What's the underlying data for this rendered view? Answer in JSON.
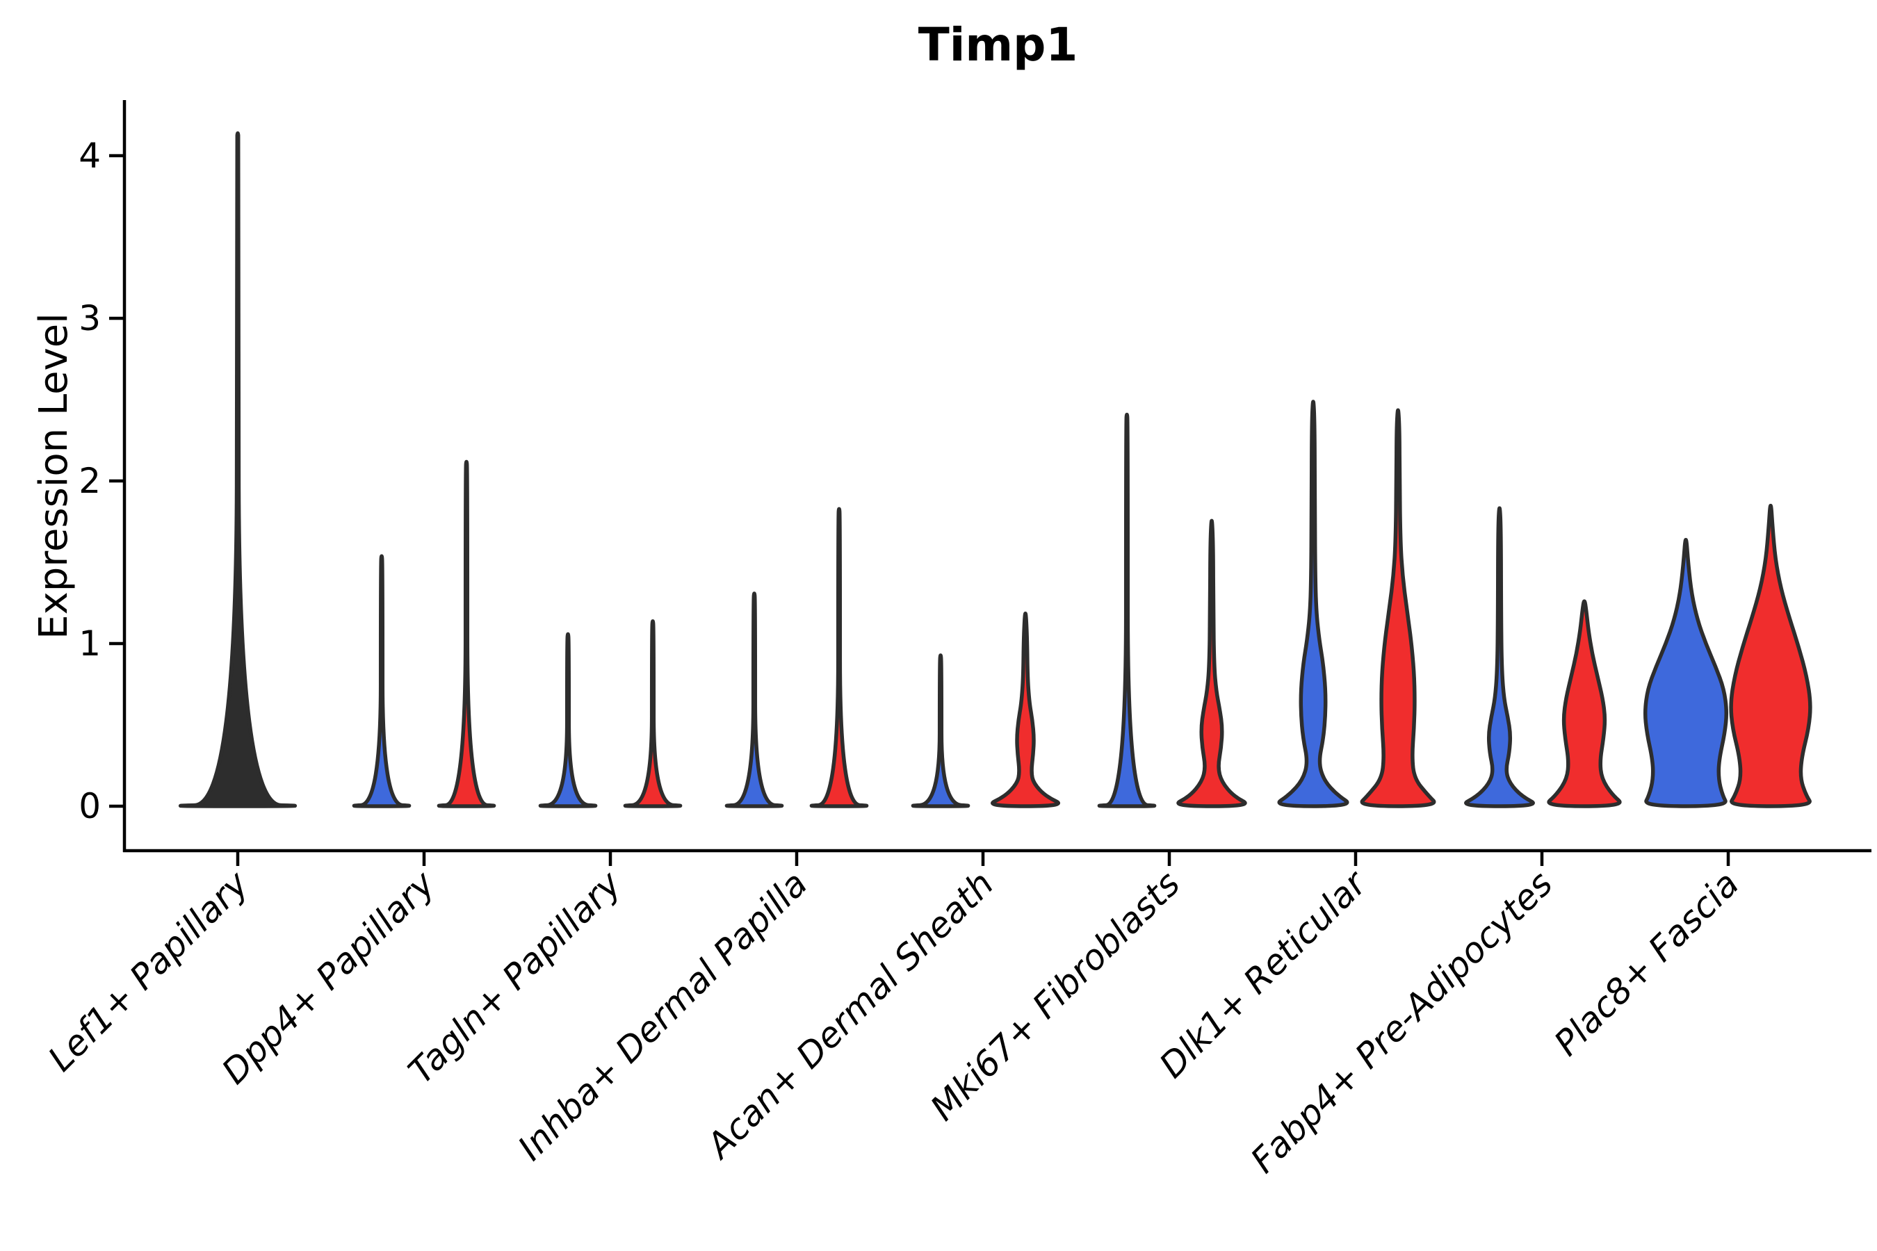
{
  "figure": {
    "title": "Timp1",
    "ylabel": "Expression Level"
  },
  "colors": {
    "blue_fill": "#3E69DC",
    "red_fill": "#F02D2D",
    "outline": "#2D2D2D",
    "axis": "#000000",
    "background": "#FFFFFF"
  },
  "chart_data": {
    "type": "violin",
    "title": "Timp1",
    "ylabel": "Expression Level",
    "xlabel": "",
    "ylim": [
      0,
      4.35
    ],
    "yticks": [
      0,
      1,
      2,
      3,
      4
    ],
    "ytick_labels": [
      "0",
      "1",
      "2",
      "3",
      "4"
    ],
    "grid": false,
    "legend_position": "none",
    "categories": [
      "Lef1+ Papillary",
      "Dpp4+ Papillary",
      "Tagln+ Papillary",
      "Inhba+ Dermal Papilla",
      "Acan+ Dermal Sheath",
      "Mki67+ Fibroblasts",
      "Dlk1+ Reticular",
      "Fabp4+ Pre-Adipocytes",
      "Plac8+ Fascia"
    ],
    "series": [
      {
        "name": "left-violin-blue",
        "color": "#3E69DC",
        "max_expression": [
          null,
          1.55,
          1.07,
          1.32,
          0.94,
          2.42,
          2.53,
          1.87,
          1.69
        ]
      },
      {
        "name": "right-violin-red",
        "color": "#F02D2D",
        "max_expression": [
          null,
          2.13,
          1.15,
          1.84,
          1.23,
          1.8,
          2.47,
          1.28,
          1.89
        ]
      }
    ],
    "single_violin": {
      "category": "Lef1+ Papillary",
      "max_expression": 4.15,
      "note": "single flat centered violin, full category width"
    },
    "violins": [
      {
        "category": 0,
        "group": "single",
        "fill": "outline",
        "dx": 0,
        "halfwidth": 123,
        "max": 4.15,
        "shape": "spike"
      },
      {
        "category": 1,
        "group": "blue",
        "fill": "blue",
        "dx": -61,
        "halfwidth": 59,
        "max": 1.55,
        "shape": "spike"
      },
      {
        "category": 1,
        "group": "red",
        "fill": "red",
        "dx": 61,
        "halfwidth": 59,
        "max": 2.13,
        "shape": "spike"
      },
      {
        "category": 2,
        "group": "blue",
        "fill": "blue",
        "dx": -61,
        "halfwidth": 59,
        "max": 1.07,
        "shape": "spike"
      },
      {
        "category": 2,
        "group": "red",
        "fill": "red",
        "dx": 61,
        "halfwidth": 59,
        "max": 1.15,
        "shape": "spike"
      },
      {
        "category": 3,
        "group": "blue",
        "fill": "blue",
        "dx": -61,
        "halfwidth": 59,
        "max": 1.32,
        "shape": "spike"
      },
      {
        "category": 3,
        "group": "red",
        "fill": "red",
        "dx": 61,
        "halfwidth": 59,
        "max": 1.84,
        "shape": "spike"
      },
      {
        "category": 4,
        "group": "blue",
        "fill": "blue",
        "dx": -61,
        "halfwidth": 59,
        "max": 0.94,
        "shape": "spike"
      },
      {
        "category": 4,
        "group": "red",
        "fill": "red",
        "dx": 61,
        "halfwidth": 59,
        "max": 1.23,
        "shape": "profile",
        "profile": [
          [
            0,
            1
          ],
          [
            0.06,
            0.5
          ],
          [
            0.14,
            0.2
          ],
          [
            0.21,
            0.14
          ],
          [
            0.32,
            0.19
          ],
          [
            0.42,
            0.21
          ],
          [
            0.53,
            0.17
          ],
          [
            0.63,
            0.1
          ],
          [
            0.78,
            0.055
          ],
          [
            1.05,
            0.04
          ],
          [
            1.23,
            0
          ]
        ]
      },
      {
        "category": 5,
        "group": "blue",
        "fill": "blue",
        "dx": -61,
        "halfwidth": 59,
        "max": 2.42,
        "shape": "spike"
      },
      {
        "category": 5,
        "group": "red",
        "fill": "red",
        "dx": 61,
        "halfwidth": 59,
        "max": 1.8,
        "shape": "profile",
        "profile": [
          [
            0,
            1
          ],
          [
            0.06,
            0.54
          ],
          [
            0.15,
            0.24
          ],
          [
            0.24,
            0.15
          ],
          [
            0.36,
            0.23
          ],
          [
            0.48,
            0.26
          ],
          [
            0.59,
            0.2
          ],
          [
            0.71,
            0.11
          ],
          [
            0.86,
            0.06
          ],
          [
            1.2,
            0.04
          ],
          [
            1.62,
            0.035
          ],
          [
            1.8,
            0
          ]
        ]
      },
      {
        "category": 6,
        "group": "blue",
        "fill": "blue",
        "dx": -61,
        "halfwidth": 59,
        "max": 2.53,
        "shape": "profile",
        "profile": [
          [
            0,
            1
          ],
          [
            0.07,
            0.58
          ],
          [
            0.16,
            0.26
          ],
          [
            0.27,
            0.13
          ],
          [
            0.42,
            0.25
          ],
          [
            0.57,
            0.3
          ],
          [
            0.72,
            0.3
          ],
          [
            0.88,
            0.24
          ],
          [
            1.02,
            0.15
          ],
          [
            1.18,
            0.08
          ],
          [
            1.4,
            0.05
          ],
          [
            1.8,
            0.04
          ],
          [
            2.36,
            0.035
          ],
          [
            2.53,
            0
          ]
        ]
      },
      {
        "category": 6,
        "group": "red",
        "fill": "red",
        "dx": 61,
        "halfwidth": 59,
        "max": 2.47,
        "shape": "profile",
        "profile": [
          [
            0,
            1
          ],
          [
            0.07,
            0.72
          ],
          [
            0.17,
            0.4
          ],
          [
            0.3,
            0.34
          ],
          [
            0.48,
            0.39
          ],
          [
            0.65,
            0.41
          ],
          [
            0.83,
            0.39
          ],
          [
            1.02,
            0.32
          ],
          [
            1.22,
            0.21
          ],
          [
            1.42,
            0.11
          ],
          [
            1.62,
            0.06
          ],
          [
            2.0,
            0.04
          ],
          [
            2.33,
            0.035
          ],
          [
            2.47,
            0
          ]
        ]
      },
      {
        "category": 7,
        "group": "blue",
        "fill": "blue",
        "dx": -61,
        "halfwidth": 59,
        "max": 1.87,
        "shape": "profile",
        "profile": [
          [
            0,
            1
          ],
          [
            0.06,
            0.55
          ],
          [
            0.14,
            0.25
          ],
          [
            0.22,
            0.15
          ],
          [
            0.33,
            0.24
          ],
          [
            0.44,
            0.27
          ],
          [
            0.55,
            0.2
          ],
          [
            0.66,
            0.11
          ],
          [
            0.82,
            0.06
          ],
          [
            1.1,
            0.04
          ],
          [
            1.72,
            0.035
          ],
          [
            1.87,
            0
          ]
        ]
      },
      {
        "category": 7,
        "group": "red",
        "fill": "red",
        "dx": 61,
        "halfwidth": 59,
        "max": 1.28,
        "shape": "profile",
        "profile": [
          [
            0,
            1
          ],
          [
            0.07,
            0.68
          ],
          [
            0.17,
            0.42
          ],
          [
            0.28,
            0.38
          ],
          [
            0.42,
            0.47
          ],
          [
            0.54,
            0.51
          ],
          [
            0.66,
            0.45
          ],
          [
            0.8,
            0.32
          ],
          [
            0.94,
            0.19
          ],
          [
            1.08,
            0.1
          ],
          [
            1.2,
            0.05
          ],
          [
            1.28,
            0
          ]
        ]
      },
      {
        "category": 8,
        "group": "blue",
        "fill": "blue",
        "dx": -61,
        "halfwidth": 61,
        "max": 1.69,
        "shape": "profile",
        "profile": [
          [
            0,
            1
          ],
          [
            0.07,
            0.86
          ],
          [
            0.17,
            0.77
          ],
          [
            0.28,
            0.78
          ],
          [
            0.45,
            0.92
          ],
          [
            0.58,
            0.97
          ],
          [
            0.72,
            0.9
          ],
          [
            0.86,
            0.7
          ],
          [
            1.0,
            0.47
          ],
          [
            1.14,
            0.28
          ],
          [
            1.3,
            0.14
          ],
          [
            1.48,
            0.06
          ],
          [
            1.69,
            0
          ]
        ]
      },
      {
        "category": 8,
        "group": "red",
        "fill": "red",
        "dx": 61,
        "halfwidth": 61,
        "max": 1.89,
        "shape": "profile",
        "profile": [
          [
            0,
            1
          ],
          [
            0.07,
            0.83
          ],
          [
            0.17,
            0.7
          ],
          [
            0.3,
            0.73
          ],
          [
            0.48,
            0.9
          ],
          [
            0.63,
            0.95
          ],
          [
            0.8,
            0.85
          ],
          [
            0.98,
            0.66
          ],
          [
            1.16,
            0.44
          ],
          [
            1.34,
            0.24
          ],
          [
            1.52,
            0.11
          ],
          [
            1.72,
            0.045
          ],
          [
            1.89,
            0
          ]
        ]
      }
    ]
  }
}
